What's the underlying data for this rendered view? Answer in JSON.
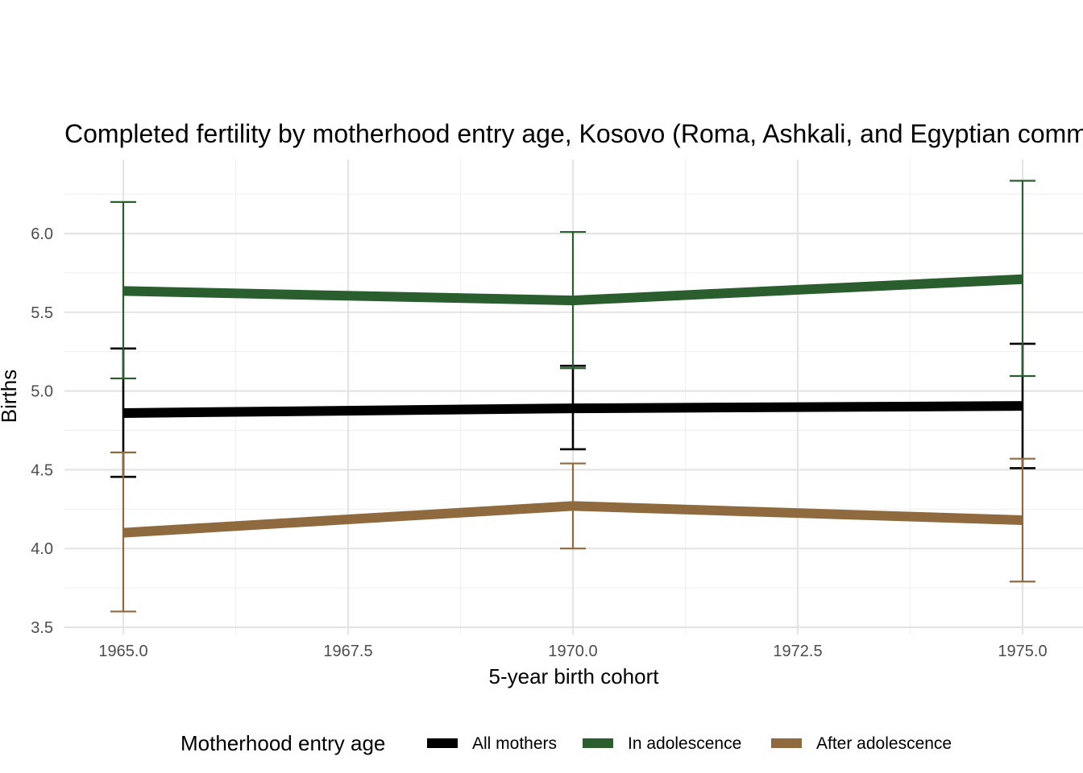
{
  "chart_data": {
    "type": "line",
    "title": "Completed fertility by motherhood entry age,  Kosovo (Roma, Ashkali, and Egyptian communities)",
    "xlabel": "5-year birth cohort",
    "ylabel": "Births",
    "xlim": [
      1964.4,
      1976.5
    ],
    "ylim": [
      3.5,
      6.45
    ],
    "x_ticks": [
      1965.0,
      1967.5,
      1970.0,
      1972.5,
      1975.0
    ],
    "x_tick_labels": [
      "1965.0",
      "1967.5",
      "1970.0",
      "1972.5",
      "1975.0"
    ],
    "y_ticks": [
      3.5,
      4.0,
      4.5,
      5.0,
      5.5,
      6.0
    ],
    "y_tick_labels": [
      "3.5",
      "4.0",
      "4.5",
      "5.0",
      "5.5",
      "6.0"
    ],
    "grid": true,
    "legend": {
      "title": "Motherhood entry age",
      "position": "bottom"
    },
    "x": [
      1965,
      1970,
      1975
    ],
    "series": [
      {
        "name": "All mothers",
        "color": "#000000",
        "values": [
          4.86,
          4.89,
          4.905
        ],
        "lower": [
          4.455,
          4.63,
          4.51
        ],
        "upper": [
          5.27,
          5.16,
          5.3
        ]
      },
      {
        "name": "In adolescence",
        "color": "#2a5e2e",
        "values": [
          5.635,
          5.575,
          5.71
        ],
        "lower": [
          5.08,
          5.145,
          5.095
        ],
        "upper": [
          6.2,
          6.01,
          6.335
        ]
      },
      {
        "name": "After adolescence",
        "color": "#8f6a3e",
        "values": [
          4.1,
          4.27,
          4.18
        ],
        "lower": [
          3.6,
          4.0,
          3.79
        ],
        "upper": [
          4.61,
          4.54,
          4.57
        ]
      }
    ]
  }
}
